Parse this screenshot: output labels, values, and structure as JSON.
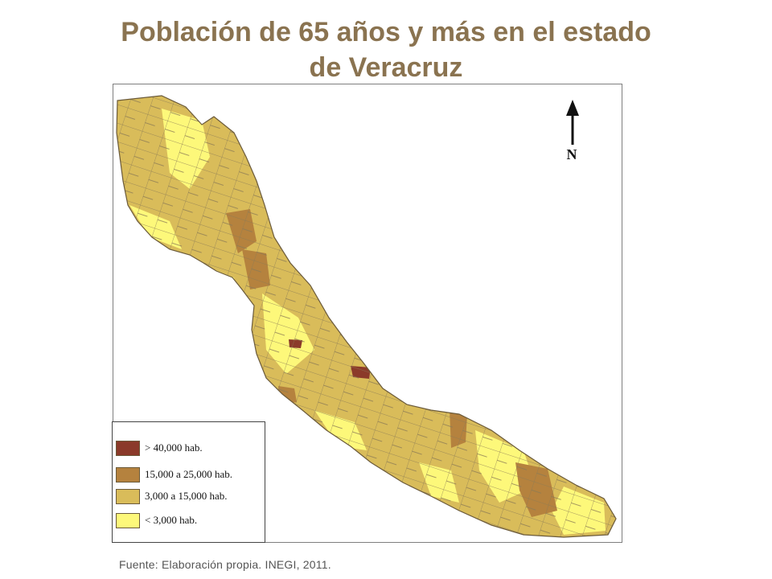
{
  "title": {
    "line1": "Población de 65 años y más en el estado",
    "line2": "de Veracruz"
  },
  "north_label": "N",
  "legend": [
    {
      "label": "> 40,000 hab.",
      "color": "#8b3a2a"
    },
    {
      "label": "15,000 a 25,000 hab.",
      "color": "#b5823e"
    },
    {
      "label": "3,000 a 15,000 hab.",
      "color": "#d9bc5a"
    },
    {
      "label": "< 3,000 hab.",
      "color": "#fdf87a"
    }
  ],
  "source": "Fuente: Elaboración propia. INEGI, 2011.",
  "colors": {
    "title": "#8a7350",
    "boundary": "#8a7a55"
  },
  "icons": {
    "north_arrow": "north-arrow-icon"
  }
}
